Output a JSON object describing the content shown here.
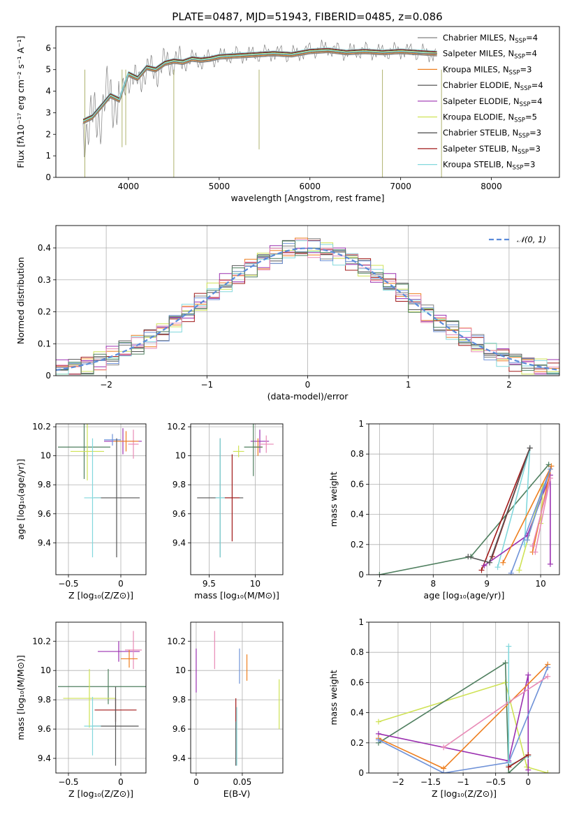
{
  "figure": {
    "title": "PLATE=0487, MJD=51943, FIBERID=0485, z=0.086"
  },
  "chart_data": [
    {
      "id": "spectrum",
      "type": "line",
      "xlabel": "wavelength [Angstrom, rest frame]",
      "ylabel": "Flux [fλ10⁻¹⁷ erg cm⁻² s⁻¹ A⁻¹]",
      "xlim": [
        3200,
        8750
      ],
      "ylim": [
        0,
        7
      ],
      "xticks": [
        4000,
        5000,
        6000,
        7000,
        8000
      ],
      "yticks": [
        0,
        1,
        2,
        3,
        4,
        5,
        6
      ],
      "grid": false,
      "legend_position": "right",
      "data_series": {
        "name": "data",
        "color": "#808080",
        "x": [
          3500,
          3600,
          3700,
          3800,
          3900,
          4000,
          4100,
          4200,
          4300,
          4400,
          4500,
          4600,
          4700,
          4800,
          4900,
          5000,
          5200,
          5400,
          5600,
          5800,
          6000,
          6200,
          6400,
          6600,
          6800,
          7000,
          7200,
          7400
        ],
        "y": [
          2.4,
          2.5,
          3.1,
          3.9,
          3.4,
          4.7,
          4.4,
          5.0,
          4.9,
          5.3,
          5.4,
          5.3,
          5.5,
          5.4,
          5.5,
          5.6,
          5.7,
          5.7,
          5.8,
          5.7,
          5.9,
          6.0,
          5.8,
          5.9,
          5.8,
          5.9,
          5.8,
          5.7
        ]
      },
      "series": [
        {
          "name": "Chabrier MILES, N",
          "sub": "SSP",
          "suffix": "=4",
          "color": "#808080"
        },
        {
          "name": "Salpeter MILES, N",
          "sub": "SSP",
          "suffix": "=4",
          "color": "#7f7f7f"
        },
        {
          "name": "Kroupa MILES, N",
          "sub": "SSP",
          "suffix": "=3",
          "color": "#ee7f1f"
        },
        {
          "name": "Chabrier ELODIE, N",
          "sub": "SSP",
          "suffix": "=4",
          "color": "#555555"
        },
        {
          "name": "Salpeter ELODIE, N",
          "sub": "SSP",
          "suffix": "=4",
          "color": "#9b30b0"
        },
        {
          "name": "Kroupa ELODIE, N",
          "sub": "SSP",
          "suffix": "=5",
          "color": "#cfe255"
        },
        {
          "name": "Chabrier STELIB, N",
          "sub": "SSP",
          "suffix": "=3",
          "color": "#333333"
        },
        {
          "name": "Salpeter STELIB, N",
          "sub": "SSP",
          "suffix": "=3",
          "color": "#a01818"
        },
        {
          "name": "Kroupa STELIB, N",
          "sub": "SSP",
          "suffix": "=3",
          "color": "#82d8dc"
        }
      ],
      "model_y": [
        2.6,
        2.8,
        3.3,
        3.8,
        3.6,
        4.8,
        4.6,
        5.1,
        5.0,
        5.3,
        5.4,
        5.35,
        5.5,
        5.45,
        5.5,
        5.6,
        5.65,
        5.7,
        5.75,
        5.7,
        5.85,
        5.9,
        5.8,
        5.85,
        5.8,
        5.85,
        5.8,
        5.75
      ]
    },
    {
      "id": "residuals",
      "type": "line",
      "xlabel": "(data-model)/error",
      "ylabel": "Normed distribution",
      "xlim": [
        -2.5,
        2.5
      ],
      "ylim": [
        0,
        0.47
      ],
      "xticks": [
        -2,
        -1,
        0,
        1,
        2
      ],
      "yticks": [
        0.0,
        0.1,
        0.2,
        0.3,
        0.4
      ],
      "grid": true,
      "legend_position": "top-right",
      "gaussian_label": "𝒩(0, 1)",
      "gaussian_color": "#5b8bd9",
      "hist_colors": [
        "#808080",
        "#ee7f1f",
        "#555555",
        "#9b30b0",
        "#cfe255",
        "#a01818",
        "#82d8dc",
        "#6f92d8",
        "#e88ab6",
        "#4f7f5f"
      ]
    },
    {
      "id": "age_vs_Z",
      "type": "scatter",
      "xlabel": "Z [log₁₀(Z/Z⊙)]",
      "ylabel": "age  [log₁₀(age/yr)]",
      "xlim": [
        -0.62,
        0.24
      ],
      "ylim": [
        9.18,
        10.22
      ],
      "xticks": [
        -0.5,
        0.0
      ],
      "yticks": [
        9.4,
        9.6,
        9.8,
        10.0,
        10.2
      ],
      "grid": true,
      "points": [
        {
          "x": -0.35,
          "y": 10.06,
          "xerr": 0.25,
          "yerr": 0.22,
          "color": "#4f7f5f"
        },
        {
          "x": -0.32,
          "y": 10.03,
          "xerr": 0.16,
          "yerr": 0.2,
          "color": "#cfe255"
        },
        {
          "x": 0.02,
          "y": 10.1,
          "xerr": 0.18,
          "yerr": 0.09,
          "color": "#9b30b0"
        },
        {
          "x": 0.12,
          "y": 10.08,
          "xerr": 0.05,
          "yerr": 0.1,
          "color": "#e88ab6"
        },
        {
          "x": -0.08,
          "y": 10.11,
          "xerr": 0.08,
          "yerr": 0.04,
          "color": "#6f92d8"
        },
        {
          "x": 0.05,
          "y": 10.1,
          "xerr": 0.12,
          "yerr": 0.07,
          "color": "#ee7f1f"
        },
        {
          "x": -0.04,
          "y": 9.71,
          "xerr": 0.22,
          "yerr": 0.41,
          "color": "#555555"
        },
        {
          "x": -0.27,
          "y": 9.71,
          "xerr": 0.08,
          "yerr": 0.41,
          "color": "#82d8dc"
        }
      ]
    },
    {
      "id": "age_vs_mass",
      "type": "scatter",
      "xlabel": "mass [log₁₀(M/M⊙)]",
      "ylabel": "",
      "xlim": [
        9.3,
        10.3
      ],
      "ylim": [
        9.18,
        10.22
      ],
      "xticks": [
        9.5,
        10.0
      ],
      "yticks": [
        9.4,
        9.6,
        9.8,
        10.0,
        10.2
      ],
      "grid": true,
      "points": [
        {
          "x": 9.62,
          "y": 9.71,
          "xerr": 0.25,
          "yerr": 0.41,
          "color": "#555555"
        },
        {
          "x": 9.75,
          "y": 9.71,
          "xerr": 0.08,
          "yerr": 0.3,
          "color": "#a01818"
        },
        {
          "x": 9.62,
          "y": 9.71,
          "xerr": 0.05,
          "yerr": 0.41,
          "color": "#82d8dc"
        },
        {
          "x": 10.05,
          "y": 10.1,
          "xerr": 0.1,
          "yerr": 0.08,
          "color": "#9b30b0"
        },
        {
          "x": 10.12,
          "y": 10.08,
          "xerr": 0.08,
          "yerr": 0.06,
          "color": "#e88ab6"
        },
        {
          "x": 10.03,
          "y": 10.06,
          "xerr": 0.05,
          "yerr": 0.06,
          "color": "#ee7f1f"
        },
        {
          "x": 9.98,
          "y": 10.06,
          "xerr": 0.1,
          "yerr": 0.2,
          "color": "#4f7f5f"
        },
        {
          "x": 9.82,
          "y": 10.03,
          "xerr": 0.06,
          "yerr": 0.04,
          "color": "#cfe255"
        }
      ]
    },
    {
      "id": "massweight_vs_age",
      "type": "line",
      "xlabel": "age  [log₁₀(age/yr)]",
      "ylabel": "mass weight",
      "xlim": [
        6.8,
        10.35
      ],
      "ylim": [
        0,
        1.0
      ],
      "xticks": [
        7,
        8,
        9,
        10
      ],
      "yticks": [
        0.0,
        0.2,
        0.4,
        0.6,
        0.8,
        1.0
      ],
      "grid": true,
      "series": [
        {
          "color": "#4f7f5f",
          "points": [
            [
              7.0,
              0.0
            ],
            [
              8.7,
              0.12
            ],
            [
              10.15,
              0.73
            ]
          ]
        },
        {
          "color": "#a01818",
          "points": [
            [
              8.9,
              0.03
            ],
            [
              9.8,
              0.84
            ],
            [
              9.1,
              0.12
            ]
          ]
        },
        {
          "color": "#82d8dc",
          "points": [
            [
              9.2,
              0.05
            ],
            [
              9.8,
              0.84
            ],
            [
              9.7,
              0.2
            ]
          ]
        },
        {
          "color": "#9b30b0",
          "points": [
            [
              8.95,
              0.06
            ],
            [
              9.75,
              0.26
            ],
            [
              10.18,
              0.66
            ],
            [
              10.18,
              0.07
            ]
          ]
        },
        {
          "color": "#cfe255",
          "points": [
            [
              9.6,
              0.03
            ],
            [
              10.05,
              0.6
            ],
            [
              10.0,
              0.34
            ]
          ]
        },
        {
          "color": "#ee7f1f",
          "points": [
            [
              9.3,
              0.08
            ],
            [
              10.2,
              0.72
            ],
            [
              9.85,
              0.15
            ]
          ]
        },
        {
          "color": "#6f92d8",
          "points": [
            [
              9.45,
              0.01
            ],
            [
              10.18,
              0.7
            ],
            [
              9.75,
              0.23
            ]
          ]
        },
        {
          "color": "#e88ab6",
          "points": [
            [
              9.85,
              0.19
            ],
            [
              10.18,
              0.64
            ],
            [
              9.9,
              0.15
            ]
          ]
        },
        {
          "color": "#555555",
          "points": [
            [
              8.65,
              0.12
            ],
            [
              9.05,
              0.08
            ],
            [
              9.8,
              0.84
            ]
          ]
        }
      ]
    },
    {
      "id": "mass_vs_Z",
      "type": "scatter",
      "xlabel": "Z [log₁₀(Z/Z⊙)]",
      "ylabel": "mass [log₁₀(M/M⊙)]",
      "xlim": [
        -0.62,
        0.24
      ],
      "ylim": [
        9.3,
        10.33
      ],
      "xticks": [
        -0.5,
        0.0
      ],
      "yticks": [
        9.4,
        9.6,
        9.8,
        10.0,
        10.2
      ],
      "grid": true,
      "points": [
        {
          "x": -0.12,
          "y": 9.89,
          "xerr": 0.48,
          "yerr": 0.12,
          "color": "#4f7f5f"
        },
        {
          "x": -0.3,
          "y": 9.81,
          "xerr": 0.25,
          "yerr": 0.2,
          "color": "#cfe255"
        },
        {
          "x": -0.02,
          "y": 10.13,
          "xerr": 0.2,
          "yerr": 0.07,
          "color": "#9b30b0"
        },
        {
          "x": 0.12,
          "y": 10.14,
          "xerr": 0.08,
          "yerr": 0.13,
          "color": "#e88ab6"
        },
        {
          "x": 0.08,
          "y": 10.08,
          "xerr": 0.08,
          "yerr": 0.06,
          "color": "#ee7f1f"
        },
        {
          "x": -0.05,
          "y": 9.73,
          "xerr": 0.2,
          "yerr": 0.08,
          "color": "#a01818"
        },
        {
          "x": -0.05,
          "y": 9.62,
          "xerr": 0.22,
          "yerr": 0.27,
          "color": "#555555"
        },
        {
          "x": -0.27,
          "y": 9.62,
          "xerr": 0.08,
          "yerr": 0.2,
          "color": "#82d8dc"
        }
      ]
    },
    {
      "id": "mass_vs_ebv",
      "type": "scatter",
      "xlabel": "E(B-V)",
      "ylabel": "",
      "xlim": [
        -0.006,
        0.094
      ],
      "ylim": [
        9.3,
        10.33
      ],
      "xticks": [
        0.0,
        0.05
      ],
      "yticks": [
        9.4,
        9.6,
        9.8,
        10.0,
        10.2
      ],
      "grid": true,
      "points": [
        {
          "x": 0.0,
          "y": 10.0,
          "xerr": 0,
          "yerr": 0.15,
          "color": "#9b30b0"
        },
        {
          "x": 0.02,
          "y": 10.14,
          "xerr": 0,
          "yerr": 0.13,
          "color": "#e88ab6"
        },
        {
          "x": 0.047,
          "y": 10.03,
          "xerr": 0,
          "yerr": 0.12,
          "color": "#6f92d8"
        },
        {
          "x": 0.055,
          "y": 10.02,
          "xerr": 0,
          "yerr": 0.09,
          "color": "#ee7f1f"
        },
        {
          "x": 0.09,
          "y": 9.77,
          "xerr": 0,
          "yerr": 0.17,
          "color": "#cfe255"
        },
        {
          "x": 0.043,
          "y": 9.73,
          "xerr": 0,
          "yerr": 0.08,
          "color": "#a01818"
        },
        {
          "x": 0.044,
          "y": 9.55,
          "xerr": 0,
          "yerr": 0.2,
          "color": "#82d8dc"
        },
        {
          "x": 0.043,
          "y": 9.5,
          "xerr": 0,
          "yerr": 0.15,
          "color": "#555555"
        }
      ]
    },
    {
      "id": "massweight_vs_Z",
      "type": "line",
      "xlabel": "Z [log₁₀(Z/Z⊙)]",
      "ylabel": "mass weight",
      "xlim": [
        -2.45,
        0.48
      ],
      "ylim": [
        0,
        1.0
      ],
      "xticks": [
        -2.0,
        -1.5,
        -1.0,
        -0.5,
        0.0
      ],
      "yticks": [
        0.0,
        0.2,
        0.4,
        0.6,
        0.8,
        1.0
      ],
      "grid": true,
      "series": [
        {
          "color": "#cfe255",
          "points": [
            [
              -2.3,
              0.34
            ],
            [
              -0.35,
              0.6
            ],
            [
              -0.02,
              0.04
            ],
            [
              0.3,
              0.0
            ]
          ]
        },
        {
          "color": "#4f7f5f",
          "points": [
            [
              -2.3,
              0.2
            ],
            [
              -0.35,
              0.73
            ],
            [
              -0.3,
              0.0
            ],
            [
              0.0,
              0.12
            ]
          ]
        },
        {
          "color": "#9b30b0",
          "points": [
            [
              -2.3,
              0.26
            ],
            [
              -0.3,
              0.08
            ],
            [
              0.0,
              0.65
            ],
            [
              0.0,
              0.02
            ]
          ]
        },
        {
          "color": "#ee7f1f",
          "points": [
            [
              -2.3,
              0.23
            ],
            [
              -1.3,
              0.03
            ],
            [
              0.3,
              0.72
            ]
          ]
        },
        {
          "color": "#6f92d8",
          "points": [
            [
              -2.3,
              0.22
            ],
            [
              -1.3,
              0.0
            ],
            [
              -0.3,
              0.07
            ],
            [
              0.3,
              0.7
            ]
          ]
        },
        {
          "color": "#e88ab6",
          "points": [
            [
              -1.3,
              0.17
            ],
            [
              -0.3,
              0.47
            ],
            [
              0.3,
              0.64
            ]
          ]
        },
        {
          "color": "#82d8dc",
          "points": [
            [
              -0.3,
              0.84
            ],
            [
              -0.3,
              0.05
            ],
            [
              0.0,
              0.11
            ]
          ]
        },
        {
          "color": "#a01818",
          "points": [
            [
              -0.3,
              0.04
            ],
            [
              0.0,
              0.12
            ]
          ]
        }
      ]
    }
  ]
}
